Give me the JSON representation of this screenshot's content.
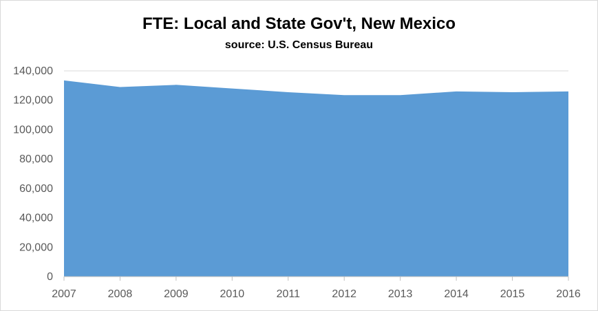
{
  "chart_data": {
    "type": "area",
    "title": "FTE: Local and State Gov't, New Mexico",
    "subtitle": "source: U.S. Census Bureau",
    "xlabel": "",
    "ylabel": "",
    "x": [
      "2007",
      "2008",
      "2009",
      "2010",
      "2011",
      "2012",
      "2013",
      "2014",
      "2015",
      "2016"
    ],
    "series": [
      {
        "values": [
          133500,
          129000,
          130500,
          128000,
          125500,
          123500,
          123500,
          126000,
          125500,
          126000
        ]
      }
    ],
    "ylim": [
      0,
      140000
    ],
    "yticks": [
      0,
      20000,
      40000,
      60000,
      80000,
      100000,
      120000,
      140000
    ],
    "ytick_labels": [
      "0",
      "20,000",
      "40,000",
      "60,000",
      "80,000",
      "100,000",
      "120,000",
      "140,000"
    ],
    "grid": true,
    "legend": "none",
    "colors": {
      "area": "#5b9bd5",
      "grid": "#d9d9d9",
      "axis": "#bfbfbf",
      "tick_text": "#595959"
    }
  }
}
